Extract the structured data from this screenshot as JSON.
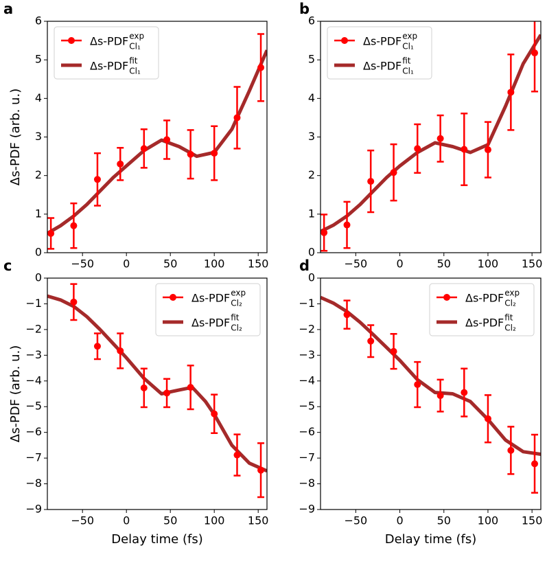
{
  "chart_data": [
    {
      "type": "line",
      "panel_label": "a",
      "ylabel": "Δs-PDF (arb. u.)",
      "xlim": [
        -90,
        160
      ],
      "ylim": [
        0,
        6
      ],
      "xticks": [
        {
          "value": -50,
          "label": "−50"
        },
        0,
        50,
        100,
        150
      ],
      "yticks": [
        0,
        1,
        2,
        3,
        4,
        5,
        6
      ],
      "legend": "upper left",
      "series": [
        {
          "name": "Δs-PDF",
          "name_sup": "exp",
          "name_sub": "Cl₁",
          "mode": "errorbar",
          "color": "#ff0000",
          "x": [
            -86,
            -60,
            -33,
            -7,
            20,
            46,
            73,
            100,
            126,
            153
          ],
          "values": [
            0.5,
            0.7,
            1.9,
            2.3,
            2.7,
            2.93,
            2.55,
            2.58,
            3.5,
            4.8
          ],
          "errors": [
            0.4,
            0.58,
            0.68,
            0.42,
            0.5,
            0.5,
            0.63,
            0.7,
            0.8,
            0.87
          ]
        },
        {
          "name": "Δs-PDF",
          "name_sup": "fit",
          "name_sub": "Cl₁",
          "mode": "line",
          "color": "#a52a2a",
          "x": [
            -90,
            -75,
            -60,
            -45,
            -30,
            -15,
            0,
            20,
            40,
            60,
            80,
            100,
            120,
            140,
            160
          ],
          "values": [
            0.5,
            0.7,
            0.95,
            1.25,
            1.6,
            1.95,
            2.25,
            2.65,
            2.92,
            2.75,
            2.5,
            2.6,
            3.2,
            4.2,
            5.25
          ]
        }
      ]
    },
    {
      "type": "line",
      "panel_label": "b",
      "xlim": [
        -90,
        160
      ],
      "ylim": [
        0,
        6
      ],
      "xticks": [
        {
          "value": -50,
          "label": "−50"
        },
        0,
        50,
        100,
        150
      ],
      "yticks": [
        0,
        1,
        2,
        3,
        4,
        5,
        6
      ],
      "legend": "upper left",
      "series": [
        {
          "name": "Δs-PDF",
          "name_sup": "exp",
          "name_sub": "Cl₁",
          "mode": "errorbar",
          "color": "#ff0000",
          "x": [
            -86,
            -60,
            -33,
            -7,
            20,
            46,
            73,
            100,
            126,
            153
          ],
          "values": [
            0.52,
            0.72,
            1.85,
            2.08,
            2.7,
            2.96,
            2.68,
            2.67,
            4.16,
            5.18
          ],
          "errors": [
            0.47,
            0.6,
            0.8,
            0.73,
            0.63,
            0.6,
            0.93,
            0.72,
            0.98,
            1.0
          ]
        },
        {
          "name": "Δs-PDF",
          "name_sup": "fit",
          "name_sub": "Cl₁",
          "mode": "line",
          "color": "#a52a2a",
          "x": [
            -90,
            -75,
            -60,
            -45,
            -30,
            -15,
            0,
            20,
            40,
            60,
            80,
            100,
            120,
            140,
            160
          ],
          "values": [
            0.55,
            0.72,
            0.95,
            1.25,
            1.6,
            1.95,
            2.25,
            2.6,
            2.85,
            2.75,
            2.6,
            2.8,
            3.8,
            4.9,
            5.65
          ]
        }
      ]
    },
    {
      "type": "line",
      "panel_label": "c",
      "ylabel": "Δs-PDF (arb. u.)",
      "xlabel": "Delay time (fs)",
      "xlim": [
        -90,
        160
      ],
      "ylim": [
        -9,
        0
      ],
      "xticks": [
        {
          "value": -50,
          "label": "−50"
        },
        0,
        50,
        100,
        150
      ],
      "yticks": [
        0,
        {
          "value": -1,
          "label": "−1"
        },
        {
          "value": -2,
          "label": "−2"
        },
        {
          "value": -3,
          "label": "−3"
        },
        {
          "value": -4,
          "label": "−4"
        },
        {
          "value": -5,
          "label": "−5"
        },
        {
          "value": -6,
          "label": "−6"
        },
        {
          "value": -7,
          "label": "−7"
        },
        {
          "value": -8,
          "label": "−8"
        },
        {
          "value": -9,
          "label": "−9"
        }
      ],
      "legend": "upper right",
      "series": [
        {
          "name": "Δs-PDF",
          "name_sup": "exp",
          "name_sub": "Cl₂",
          "mode": "errorbar",
          "color": "#ff0000",
          "x": [
            -60,
            -33,
            -7,
            20,
            46,
            73,
            100,
            126,
            153
          ],
          "values": [
            -0.93,
            -2.65,
            -2.83,
            -4.27,
            -4.47,
            -4.25,
            -5.28,
            -6.88,
            -7.47
          ],
          "errors": [
            0.7,
            0.5,
            0.68,
            0.75,
            0.55,
            0.85,
            0.75,
            0.8,
            1.05
          ]
        },
        {
          "name": "Δs-PDF",
          "name_sup": "fit",
          "name_sub": "Cl₂",
          "mode": "line",
          "color": "#a52a2a",
          "x": [
            -90,
            -75,
            -60,
            -45,
            -30,
            -15,
            0,
            20,
            40,
            60,
            75,
            90,
            100,
            120,
            140,
            160
          ],
          "values": [
            -0.7,
            -0.85,
            -1.1,
            -1.5,
            -2.0,
            -2.55,
            -3.1,
            -3.9,
            -4.5,
            -4.35,
            -4.25,
            -4.8,
            -5.3,
            -6.5,
            -7.2,
            -7.5
          ]
        }
      ]
    },
    {
      "type": "line",
      "panel_label": "d",
      "xlabel": "Delay time (fs)",
      "xlim": [
        -90,
        160
      ],
      "ylim": [
        -9,
        0
      ],
      "xticks": [
        {
          "value": -50,
          "label": "−50"
        },
        0,
        50,
        100,
        150
      ],
      "yticks": [
        0,
        {
          "value": -1,
          "label": "−1"
        },
        {
          "value": -2,
          "label": "−2"
        },
        {
          "value": -3,
          "label": "−3"
        },
        {
          "value": -4,
          "label": "−4"
        },
        {
          "value": -5,
          "label": "−5"
        },
        {
          "value": -6,
          "label": "−6"
        },
        {
          "value": -7,
          "label": "−7"
        },
        {
          "value": -8,
          "label": "−8"
        },
        {
          "value": -9,
          "label": "−9"
        }
      ],
      "legend": "upper right",
      "series": [
        {
          "name": "Δs-PDF",
          "name_sup": "exp",
          "name_sub": "Cl₂",
          "mode": "errorbar",
          "color": "#ff0000",
          "x": [
            -60,
            -33,
            -7,
            20,
            46,
            73,
            100,
            126,
            153
          ],
          "values": [
            -1.42,
            -2.45,
            -2.85,
            -4.14,
            -4.57,
            -4.45,
            -5.47,
            -6.7,
            -7.22
          ],
          "errors": [
            0.55,
            0.62,
            0.68,
            0.88,
            0.62,
            0.93,
            0.92,
            0.92,
            1.13
          ]
        },
        {
          "name": "Δs-PDF",
          "name_sup": "fit",
          "name_sub": "Cl₂",
          "mode": "line",
          "color": "#a52a2a",
          "x": [
            -90,
            -75,
            -60,
            -45,
            -30,
            -15,
            0,
            20,
            40,
            60,
            80,
            100,
            120,
            140,
            160
          ],
          "values": [
            -0.75,
            -0.98,
            -1.3,
            -1.72,
            -2.2,
            -2.7,
            -3.2,
            -3.95,
            -4.45,
            -4.5,
            -4.8,
            -5.5,
            -6.3,
            -6.75,
            -6.85
          ]
        }
      ]
    }
  ]
}
